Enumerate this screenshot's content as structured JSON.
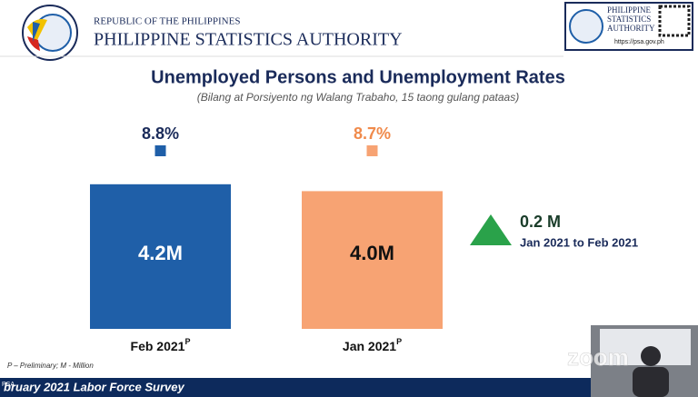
{
  "header": {
    "republic": "REPUBLIC OF THE PHILIPPINES",
    "agency": "PHILIPPINE STATISTICS AUTHORITY",
    "badge": {
      "lines": [
        "PHILIPPINE",
        "STATISTICS",
        "AUTHORITY"
      ],
      "url": "https://psa.gov.ph"
    }
  },
  "chart_data": {
    "type": "bar",
    "title": "Unemployed Persons and Unemployment Rates",
    "subtitle": "(Bilang at Porsiyento ng Walang Trabaho, 15 taong gulang pataas)",
    "categories": [
      "Feb 2021",
      "Jan 2021"
    ],
    "category_marks": [
      "P",
      "P"
    ],
    "values": [
      4.2,
      4.0
    ],
    "value_labels": [
      "4.2M",
      "4.0M"
    ],
    "colors": [
      "#1f5fa8",
      "#f7a373"
    ],
    "label_colors": [
      "#ffffff",
      "#111111"
    ],
    "rates": [
      8.8,
      8.7
    ],
    "rate_labels": [
      "8.8%",
      "8.7%"
    ],
    "rate_colors": [
      "#1a2b5a",
      "#f08a4b"
    ],
    "change": {
      "value": 0.2,
      "label": "0.2 M",
      "period": "Jan 2021 to Feb 2021",
      "color": "#2aa24a"
    },
    "footnote": "P – Preliminary; M - Million"
  },
  "footer": {
    "banner": "bruary 2021 Labor Force Survey",
    "tag": "PSA"
  },
  "overlay": {
    "watermark": "zoom"
  }
}
